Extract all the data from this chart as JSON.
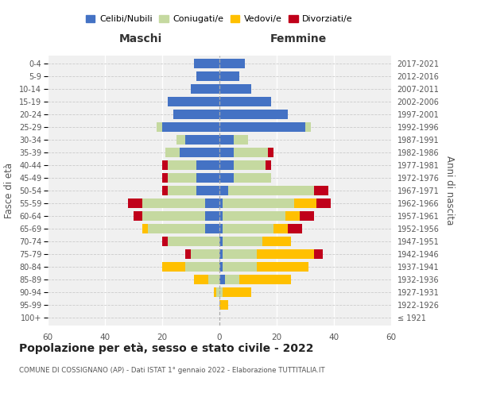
{
  "age_groups": [
    "100+",
    "95-99",
    "90-94",
    "85-89",
    "80-84",
    "75-79",
    "70-74",
    "65-69",
    "60-64",
    "55-59",
    "50-54",
    "45-49",
    "40-44",
    "35-39",
    "30-34",
    "25-29",
    "20-24",
    "15-19",
    "10-14",
    "5-9",
    "0-4"
  ],
  "birth_years": [
    "≤ 1921",
    "1922-1926",
    "1927-1931",
    "1932-1936",
    "1937-1941",
    "1942-1946",
    "1947-1951",
    "1952-1956",
    "1957-1961",
    "1962-1966",
    "1967-1971",
    "1972-1976",
    "1977-1981",
    "1982-1986",
    "1987-1991",
    "1992-1996",
    "1997-2001",
    "2002-2006",
    "2007-2011",
    "2012-2016",
    "2017-2021"
  ],
  "males": {
    "celibi": [
      0,
      0,
      0,
      0,
      0,
      0,
      0,
      5,
      5,
      5,
      8,
      8,
      8,
      14,
      12,
      20,
      16,
      18,
      10,
      8,
      9
    ],
    "coniugati": [
      0,
      0,
      1,
      4,
      12,
      10,
      18,
      20,
      22,
      22,
      10,
      10,
      10,
      5,
      3,
      2,
      0,
      0,
      0,
      0,
      0
    ],
    "vedovi": [
      0,
      0,
      1,
      5,
      8,
      0,
      0,
      2,
      0,
      0,
      0,
      0,
      0,
      0,
      0,
      0,
      0,
      0,
      0,
      0,
      0
    ],
    "divorziati": [
      0,
      0,
      0,
      0,
      0,
      2,
      2,
      0,
      3,
      5,
      2,
      2,
      2,
      0,
      0,
      0,
      0,
      0,
      0,
      0,
      0
    ]
  },
  "females": {
    "nubili": [
      0,
      0,
      0,
      2,
      1,
      1,
      1,
      1,
      1,
      1,
      3,
      5,
      5,
      5,
      5,
      30,
      24,
      18,
      11,
      7,
      9
    ],
    "coniugate": [
      0,
      0,
      1,
      5,
      12,
      12,
      14,
      18,
      22,
      25,
      30,
      13,
      11,
      12,
      5,
      2,
      0,
      0,
      0,
      0,
      0
    ],
    "vedove": [
      0,
      3,
      10,
      18,
      18,
      20,
      10,
      5,
      5,
      8,
      0,
      0,
      0,
      0,
      0,
      0,
      0,
      0,
      0,
      0,
      0
    ],
    "divorziate": [
      0,
      0,
      0,
      0,
      0,
      3,
      0,
      5,
      5,
      5,
      5,
      0,
      2,
      2,
      0,
      0,
      0,
      0,
      0,
      0,
      0
    ]
  },
  "colors": {
    "celibi": "#4472C4",
    "coniugati": "#c5d9a0",
    "vedovi": "#ffc000",
    "divorziati": "#c0001a"
  },
  "title": "Popolazione per età, sesso e stato civile - 2022",
  "subtitle": "COMUNE DI COSSIGNANO (AP) - Dati ISTAT 1° gennaio 2022 - Elaborazione TUTTITALIA.IT",
  "ylabel_left": "Fasce di età",
  "ylabel_right": "Anni di nascita",
  "xlabel_left": "Maschi",
  "xlabel_right": "Femmine",
  "xlim": 60,
  "bg_color": "#f0f0f0",
  "legend_labels": [
    "Celibi/Nubili",
    "Coniugati/e",
    "Vedovi/e",
    "Divorziati/e"
  ]
}
